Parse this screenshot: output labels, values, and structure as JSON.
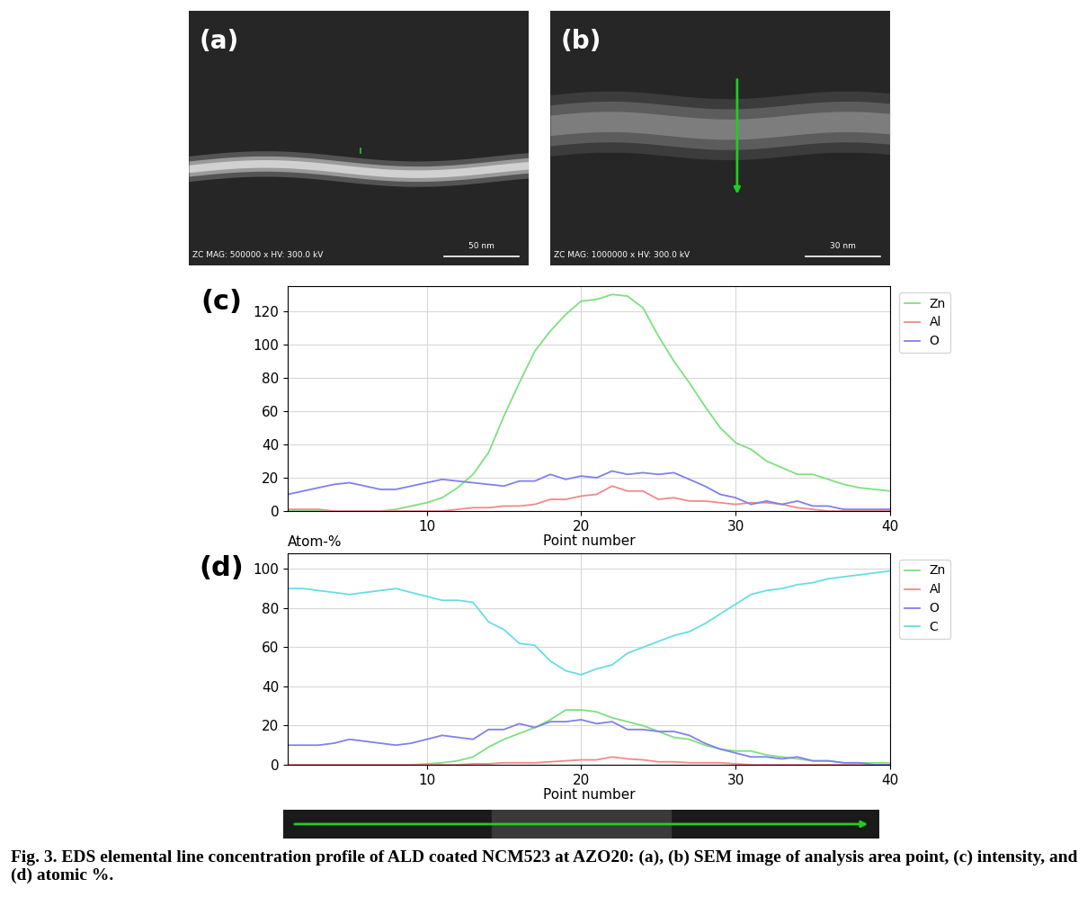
{
  "chart_data": [
    {
      "type": "line",
      "title": "(c)",
      "xlabel": "Point number",
      "x": [
        1,
        2,
        3,
        4,
        5,
        6,
        7,
        8,
        9,
        10,
        11,
        12,
        13,
        14,
        15,
        16,
        17,
        18,
        19,
        20,
        21,
        22,
        23,
        24,
        25,
        26,
        27,
        28,
        29,
        30,
        31,
        32,
        33,
        34,
        35,
        36,
        37,
        38,
        39,
        40
      ],
      "xlim": [
        1,
        40
      ],
      "xticks": [
        10,
        20,
        30,
        40
      ],
      "ylim": [
        0,
        135
      ],
      "yticks": [
        0,
        20,
        40,
        60,
        80,
        100,
        120
      ],
      "grid": true,
      "legend": "upper right",
      "series": [
        {
          "name": "Zn",
          "color": "#7ee07e",
          "values": [
            0,
            0,
            0,
            0,
            0,
            0,
            0,
            1,
            3,
            5,
            8,
            14,
            22,
            35,
            57,
            77,
            96,
            108,
            118,
            126,
            127,
            130,
            129,
            122,
            105,
            90,
            77,
            63,
            50,
            41,
            37,
            30,
            26,
            22,
            22,
            19,
            16,
            14,
            13,
            12
          ]
        },
        {
          "name": "Al",
          "color": "#f08a8a",
          "values": [
            1,
            1,
            1,
            0,
            0,
            0,
            0,
            0,
            0,
            0,
            0,
            1,
            2,
            2,
            3,
            3,
            4,
            7,
            7,
            9,
            10,
            15,
            12,
            12,
            7,
            8,
            6,
            6,
            5,
            4,
            5,
            5,
            4,
            2,
            1,
            0,
            0,
            0,
            0,
            0
          ]
        },
        {
          "name": "O",
          "color": "#8080ee",
          "values": [
            10,
            12,
            14,
            16,
            17,
            15,
            13,
            13,
            15,
            17,
            19,
            18,
            17,
            16,
            15,
            18,
            18,
            22,
            19,
            21,
            20,
            24,
            22,
            23,
            22,
            23,
            19,
            15,
            10,
            8,
            4,
            6,
            4,
            6,
            3,
            3,
            1,
            1,
            1,
            1
          ]
        }
      ]
    },
    {
      "type": "line",
      "title": "(d)",
      "ylabel": "Atom-%",
      "xlabel": "Point number",
      "x": [
        1,
        2,
        3,
        4,
        5,
        6,
        7,
        8,
        9,
        10,
        11,
        12,
        13,
        14,
        15,
        16,
        17,
        18,
        19,
        20,
        21,
        22,
        23,
        24,
        25,
        26,
        27,
        28,
        29,
        30,
        31,
        32,
        33,
        34,
        35,
        36,
        37,
        38,
        39,
        40
      ],
      "xlim": [
        1,
        40
      ],
      "xticks": [
        10,
        20,
        30,
        40
      ],
      "ylim": [
        0,
        108
      ],
      "yticks": [
        0,
        20,
        40,
        60,
        80,
        100
      ],
      "grid": true,
      "legend": "upper right",
      "series": [
        {
          "name": "Zn",
          "color": "#7ee07e",
          "values": [
            0,
            0,
            0,
            0,
            0,
            0,
            0,
            0,
            0,
            0.5,
            1,
            2,
            4,
            9,
            13,
            16,
            19,
            23,
            28,
            28,
            27,
            24,
            22,
            20,
            17,
            14,
            13,
            10,
            8,
            7,
            7,
            5,
            4,
            3,
            2,
            2,
            1,
            1,
            1,
            1
          ]
        },
        {
          "name": "Al",
          "color": "#f08a8a",
          "values": [
            0,
            0,
            0,
            0,
            0,
            0,
            0,
            0,
            0,
            0,
            0,
            0,
            0.5,
            0.5,
            1,
            1,
            1,
            1.5,
            2,
            2.5,
            2.5,
            4,
            3,
            2.5,
            1.5,
            1.5,
            1,
            1,
            1,
            0.5,
            0,
            0,
            0,
            0,
            0,
            0,
            0,
            0,
            0,
            0
          ]
        },
        {
          "name": "O",
          "color": "#8080ee",
          "values": [
            10,
            10,
            10,
            11,
            13,
            12,
            11,
            10,
            11,
            13,
            15,
            14,
            13,
            18,
            18,
            21,
            19,
            22,
            22,
            23,
            21,
            22,
            18,
            18,
            17,
            17,
            15,
            11,
            8,
            6,
            4,
            4,
            3,
            4,
            2,
            2,
            1,
            1,
            0,
            0
          ]
        },
        {
          "name": "C",
          "color": "#66dde6",
          "values": [
            90,
            90,
            89,
            88,
            87,
            88,
            89,
            90,
            88,
            86,
            84,
            84,
            83,
            73,
            69,
            62,
            61,
            53,
            48,
            46,
            49,
            51,
            57,
            60,
            63,
            66,
            68,
            72,
            77,
            82,
            87,
            89,
            90,
            92,
            93,
            95,
            96,
            97,
            98,
            99
          ]
        }
      ]
    }
  ],
  "images": [
    {
      "label": "(a)",
      "info": "ZC MAG: 500000 x HV: 300.0 kV",
      "scale_bar": "50 nm"
    },
    {
      "label": "(b)",
      "info": "ZC MAG: 1000000 x HV: 300.0 kV",
      "scale_bar": "30 nm"
    }
  ],
  "caption": "Fig. 3. EDS elemental line concentration profile of ALD coated NCM523 at AZO20: (a), (b) SEM image of analysis area point, (c) intensity, and (d) atomic %."
}
